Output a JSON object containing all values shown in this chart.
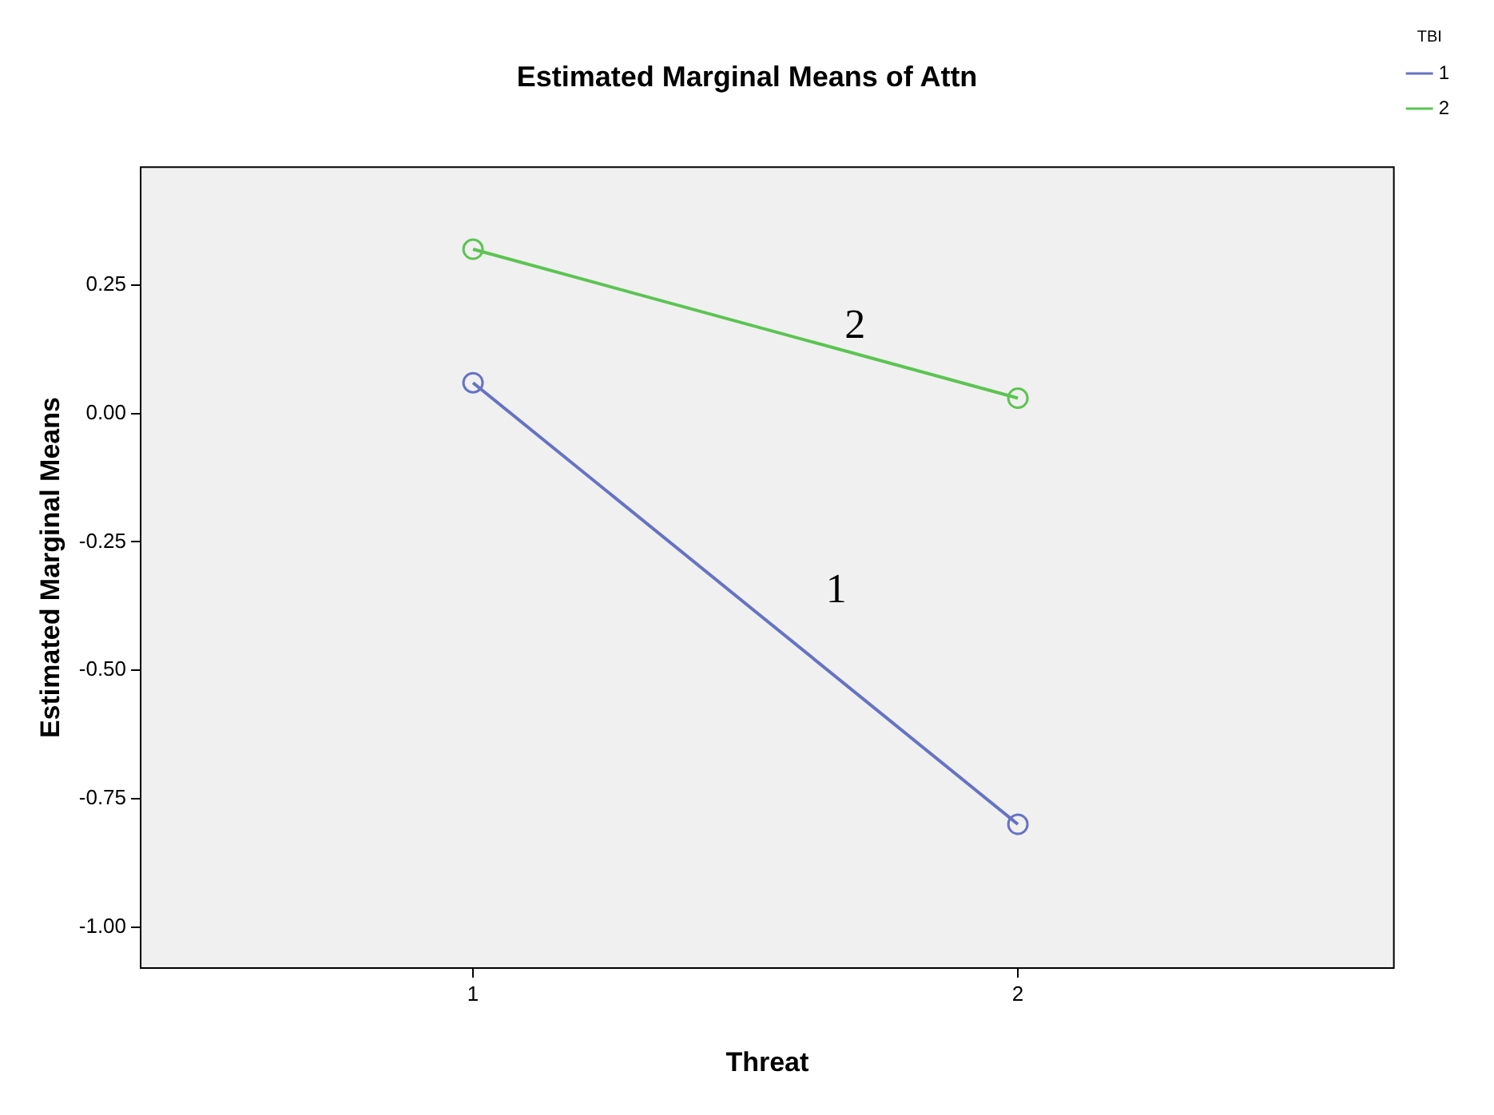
{
  "chart_data": {
    "type": "line",
    "title": "Estimated Marginal Means of Attn",
    "xlabel": "Threat",
    "ylabel": "Estimated Marginal Means",
    "legend_title": "TBI",
    "x": [
      1,
      2
    ],
    "xlim": [
      0.39,
      2.69
    ],
    "xticks": [
      1,
      2
    ],
    "ylim": [
      -1.08,
      0.48
    ],
    "yticks": [
      {
        "value": 0.25,
        "label": "0.25"
      },
      {
        "value": 0,
        "label": "0.00"
      },
      {
        "value": -0.25,
        "label": "-0.25"
      },
      {
        "value": -0.5,
        "label": "-0.50"
      },
      {
        "value": -0.75,
        "label": "-0.75"
      },
      {
        "value": -1,
        "label": "-1.00"
      }
    ],
    "series": [
      {
        "name": "1",
        "color": "#6673c4",
        "values": [
          0.06,
          -0.8
        ]
      },
      {
        "name": "2",
        "color": "#5cc452",
        "values": [
          0.32,
          0.03
        ]
      }
    ],
    "annotations": [
      "2",
      "1"
    ],
    "marker": "circle",
    "line_style": "solid",
    "grid": false,
    "legend": "top right"
  }
}
